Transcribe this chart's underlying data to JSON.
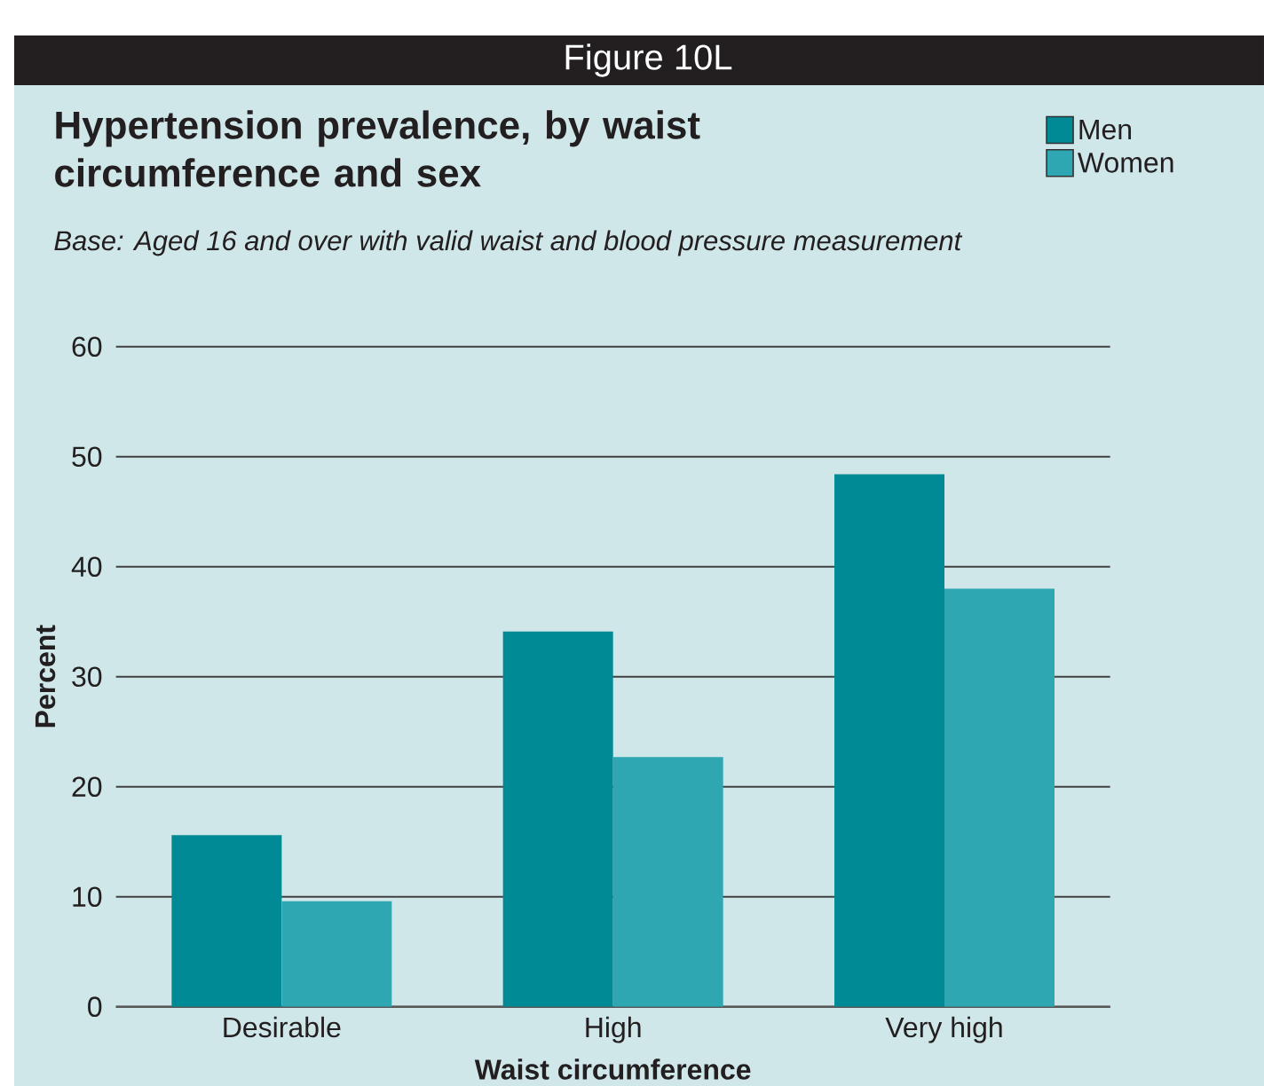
{
  "chart_data": {
    "type": "bar",
    "title": "Hypertension prevalence, by waist circumference and sex",
    "subtitle": "Base: Aged 16 and over with valid waist and blood pressure measurement",
    "xlabel": "Waist circumference",
    "ylabel": "Percent",
    "annotations": [
      "Figure 10L"
    ],
    "categories": [
      "Desirable",
      "High",
      "Very high"
    ],
    "series": [
      {
        "name": "Men",
        "color": "#008a96",
        "values": [
          15.6,
          34.1,
          48.4
        ]
      },
      {
        "name": "Women",
        "color": "#2ea7b2",
        "values": [
          9.6,
          22.7,
          38.0
        ]
      }
    ],
    "ylim": [
      0,
      60
    ],
    "yticks": [
      0,
      10,
      20,
      30,
      40,
      50,
      60
    ],
    "grid": "y",
    "legend": "top right"
  }
}
